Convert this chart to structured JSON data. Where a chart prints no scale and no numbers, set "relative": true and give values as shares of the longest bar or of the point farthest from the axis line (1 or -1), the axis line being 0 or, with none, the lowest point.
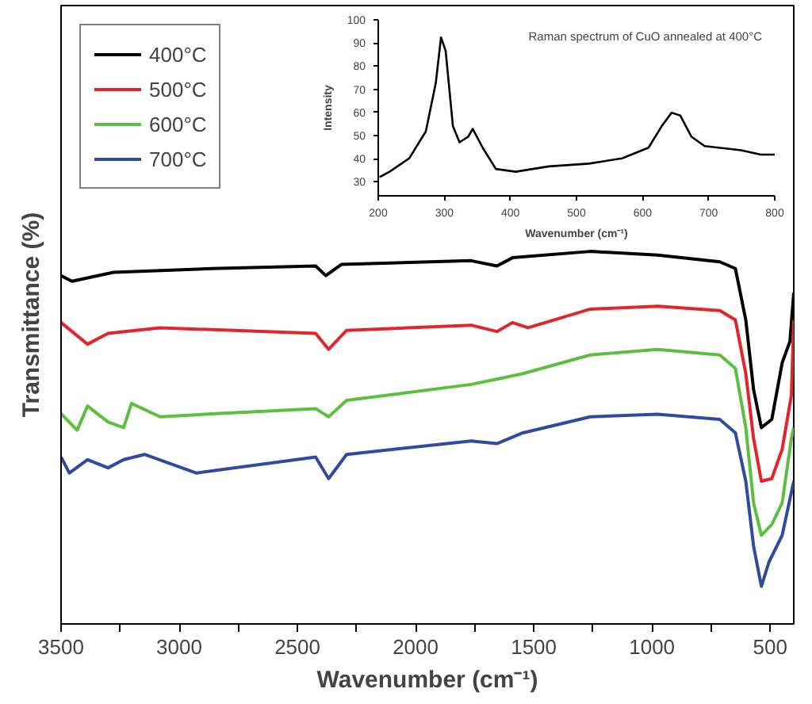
{
  "chart_data": [
    {
      "type": "line",
      "relative": true,
      "xlabel": "Wavenumber (cm⁻¹)",
      "ylabel": "Transmittance (%)",
      "xlim": [
        3500,
        400
      ],
      "xticks": [
        3500,
        {
          "value": 3250,
          "label": null
        },
        3000,
        {
          "value": 2750,
          "label": null
        },
        2500,
        {
          "value": 2250,
          "label": null
        },
        2000,
        {
          "value": 1750,
          "label": null
        },
        1500,
        {
          "value": 1250,
          "label": null
        },
        1000,
        {
          "value": 750,
          "label": null
        },
        500
      ],
      "tick_labels": "x",
      "legend": "top left",
      "grid": false,
      "line_style": "solid",
      "marker": "none",
      "series": [
        {
          "name": "400°C",
          "color": "#000000",
          "x": [
            3500,
            3454,
            3278,
            2862,
            2423,
            2380,
            2314,
            1765,
            1656,
            1590,
            1261,
            976,
            713,
            647,
            603,
            570,
            537,
            493,
            449,
            416,
            400
          ],
          "values": [
            0.935,
            0.92,
            0.944,
            0.954,
            0.961,
            0.935,
            0.965,
            0.975,
            0.961,
            0.983,
            1.0,
            0.99,
            0.972,
            0.954,
            0.816,
            0.629,
            0.527,
            0.549,
            0.701,
            0.759,
            0.889
          ]
        },
        {
          "name": "500°C",
          "color": "#e0262b",
          "x": [
            3500,
            3388,
            3301,
            3081,
            2423,
            2368,
            2292,
            1765,
            1656,
            1590,
            1524,
            1261,
            976,
            713,
            647,
            603,
            570,
            537,
            493,
            449,
            410,
            400
          ],
          "values": [
            0.809,
            0.751,
            0.78,
            0.795,
            0.78,
            0.737,
            0.788,
            0.802,
            0.785,
            0.809,
            0.795,
            0.845,
            0.853,
            0.841,
            0.816,
            0.672,
            0.498,
            0.383,
            0.39,
            0.469,
            0.614,
            0.816
          ]
        },
        {
          "name": "600°C",
          "color": "#5cbf3f",
          "x": [
            3500,
            3432,
            3388,
            3301,
            3235,
            3202,
            3081,
            2862,
            2423,
            2368,
            2292,
            1765,
            1656,
            1546,
            1261,
            976,
            713,
            647,
            603,
            570,
            537,
            493,
            449,
            410,
            400
          ],
          "values": [
            0.564,
            0.52,
            0.585,
            0.542,
            0.527,
            0.592,
            0.556,
            0.564,
            0.578,
            0.556,
            0.6,
            0.643,
            0.657,
            0.672,
            0.722,
            0.737,
            0.722,
            0.686,
            0.527,
            0.325,
            0.238,
            0.267,
            0.325,
            0.498,
            0.527
          ]
        },
        {
          "name": "700°C",
          "color": "#2f4aa0",
          "x": [
            3500,
            3465,
            3388,
            3301,
            3235,
            3147,
            2928,
            2423,
            2368,
            2292,
            1765,
            1656,
            1546,
            1261,
            976,
            713,
            647,
            603,
            570,
            537,
            505,
            449,
            400
          ],
          "values": [
            0.448,
            0.405,
            0.441,
            0.419,
            0.441,
            0.455,
            0.405,
            0.448,
            0.39,
            0.455,
            0.491,
            0.484,
            0.513,
            0.556,
            0.563,
            0.549,
            0.513,
            0.383,
            0.209,
            0.101,
            0.166,
            0.238,
            0.383
          ]
        }
      ]
    },
    {
      "type": "line",
      "xlabel": "Wavenumber (cm⁻¹)",
      "ylabel": "Intensity",
      "annotations": [
        "Raman spectrum of CuO annealed at 400°C"
      ],
      "xlim": [
        200,
        800
      ],
      "xticks": [
        200,
        300,
        400,
        500,
        600,
        700,
        800
      ],
      "ylim": [
        24,
        100
      ],
      "yticks": [
        30,
        40,
        50,
        60,
        70,
        80,
        90,
        100
      ],
      "grid": false,
      "line_style": "solid",
      "marker": "none",
      "series": [
        {
          "color": "#000000",
          "x": [
            202,
            217,
            247,
            272,
            287,
            295,
            302,
            313,
            323,
            336,
            343,
            358,
            378,
            408,
            458,
            519,
            569,
            609,
            629,
            644,
            657,
            674,
            694,
            749,
            779,
            800
          ],
          "values": [
            32.1,
            34.4,
            40.2,
            51.8,
            72.6,
            92.4,
            86.6,
            54.1,
            47.1,
            49.5,
            52.9,
            44.8,
            35.6,
            34.4,
            36.7,
            37.9,
            40.2,
            44.8,
            54.1,
            59.9,
            58.7,
            49.5,
            45.5,
            43.7,
            41.8,
            41.8
          ]
        }
      ]
    }
  ]
}
